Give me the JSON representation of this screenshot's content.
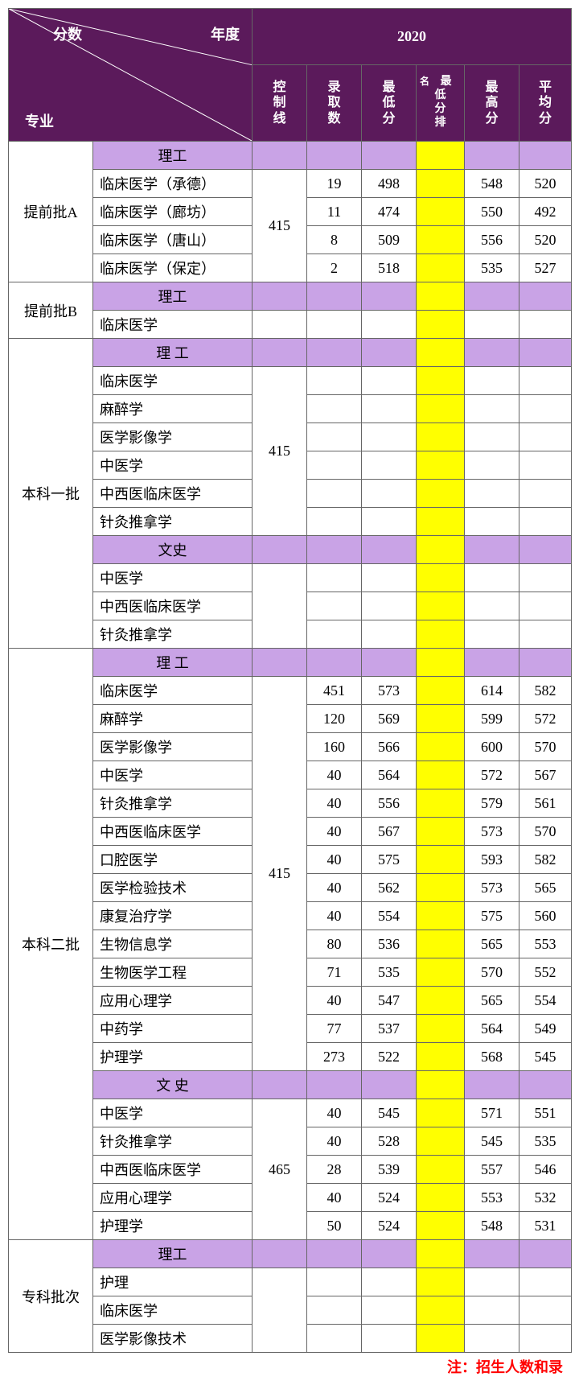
{
  "colors": {
    "header_bg": "#5b1a5b",
    "header_fg": "#ffffff",
    "subheader_bg": "#c9a3e6",
    "highlight_bg": "#ffff00",
    "border": "#666666",
    "footnote": "#ff0000"
  },
  "header": {
    "year": "2020",
    "diag_score": "分数",
    "diag_year": "年度",
    "diag_major": "专业",
    "cols": [
      "控制线",
      "录取数",
      "最低分",
      "最低分排名",
      "最高分",
      "平均分"
    ],
    "rank_prefix": "名"
  },
  "sections": [
    {
      "batch": "提前批A",
      "groups": [
        {
          "cat": "理工",
          "ctrl": "415",
          "ctrl_span": 4,
          "rows": [
            {
              "major": "临床医学（承德）",
              "num": "19",
              "min": "498",
              "rank": "",
              "max": "548",
              "avg": "520"
            },
            {
              "major": "临床医学（廊坊）",
              "num": "11",
              "min": "474",
              "rank": "",
              "max": "550",
              "avg": "492"
            },
            {
              "major": "临床医学（唐山）",
              "num": "8",
              "min": "509",
              "rank": "",
              "max": "556",
              "avg": "520"
            },
            {
              "major": "临床医学（保定）",
              "num": "2",
              "min": "518",
              "rank": "",
              "max": "535",
              "avg": "527"
            }
          ]
        }
      ]
    },
    {
      "batch": "提前批B",
      "groups": [
        {
          "cat": "理工",
          "rows": [
            {
              "major": "临床医学",
              "num": "",
              "min": "",
              "rank": "",
              "max": "",
              "avg": ""
            }
          ]
        }
      ]
    },
    {
      "batch": "本科一批",
      "groups": [
        {
          "cat": "理 工",
          "ctrl": "415",
          "ctrl_span": 6,
          "rows": [
            {
              "major": "临床医学",
              "num": "",
              "min": "",
              "rank": "",
              "max": "",
              "avg": ""
            },
            {
              "major": "麻醉学",
              "num": "",
              "min": "",
              "rank": "",
              "max": "",
              "avg": ""
            },
            {
              "major": "医学影像学",
              "num": "",
              "min": "",
              "rank": "",
              "max": "",
              "avg": ""
            },
            {
              "major": "中医学",
              "num": "",
              "min": "",
              "rank": "",
              "max": "",
              "avg": ""
            },
            {
              "major": "中西医临床医学",
              "num": "",
              "min": "",
              "rank": "",
              "max": "",
              "avg": ""
            },
            {
              "major": "针灸推拿学",
              "num": "",
              "min": "",
              "rank": "",
              "max": "",
              "avg": ""
            }
          ]
        },
        {
          "cat": "文史",
          "rows": [
            {
              "major": "中医学",
              "num": "",
              "min": "",
              "rank": "",
              "max": "",
              "avg": ""
            },
            {
              "major": "中西医临床医学",
              "num": "",
              "min": "",
              "rank": "",
              "max": "",
              "avg": ""
            },
            {
              "major": "针灸推拿学",
              "num": "",
              "min": "",
              "rank": "",
              "max": "",
              "avg": ""
            }
          ]
        }
      ]
    },
    {
      "batch": "本科二批",
      "groups": [
        {
          "cat": "理 工",
          "ctrl": "415",
          "ctrl_span": 14,
          "rows": [
            {
              "major": "临床医学",
              "num": "451",
              "min": "573",
              "rank": "",
              "max": "614",
              "avg": "582"
            },
            {
              "major": "麻醉学",
              "num": "120",
              "min": "569",
              "rank": "",
              "max": "599",
              "avg": "572"
            },
            {
              "major": "医学影像学",
              "num": "160",
              "min": "566",
              "rank": "",
              "max": "600",
              "avg": "570"
            },
            {
              "major": "中医学",
              "num": "40",
              "min": "564",
              "rank": "",
              "max": "572",
              "avg": "567"
            },
            {
              "major": "针灸推拿学",
              "num": "40",
              "min": "556",
              "rank": "",
              "max": "579",
              "avg": "561"
            },
            {
              "major": "中西医临床医学",
              "num": "40",
              "min": "567",
              "rank": "",
              "max": "573",
              "avg": "570"
            },
            {
              "major": "口腔医学",
              "num": "40",
              "min": "575",
              "rank": "",
              "max": "593",
              "avg": "582"
            },
            {
              "major": "医学检验技术",
              "num": "40",
              "min": "562",
              "rank": "",
              "max": "573",
              "avg": "565"
            },
            {
              "major": "康复治疗学",
              "num": "40",
              "min": "554",
              "rank": "",
              "max": "575",
              "avg": "560"
            },
            {
              "major": "生物信息学",
              "num": "80",
              "min": "536",
              "rank": "",
              "max": "565",
              "avg": "553"
            },
            {
              "major": "生物医学工程",
              "num": "71",
              "min": "535",
              "rank": "",
              "max": "570",
              "avg": "552"
            },
            {
              "major": "应用心理学",
              "num": "40",
              "min": "547",
              "rank": "",
              "max": "565",
              "avg": "554"
            },
            {
              "major": "中药学",
              "num": "77",
              "min": "537",
              "rank": "",
              "max": "564",
              "avg": "549"
            },
            {
              "major": "护理学",
              "num": "273",
              "min": "522",
              "rank": "",
              "max": "568",
              "avg": "545"
            }
          ]
        },
        {
          "cat": "文 史",
          "ctrl": "465",
          "ctrl_span": 5,
          "rows": [
            {
              "major": "中医学",
              "num": "40",
              "min": "545",
              "rank": "",
              "max": "571",
              "avg": "551"
            },
            {
              "major": "针灸推拿学",
              "num": "40",
              "min": "528",
              "rank": "",
              "max": "545",
              "avg": "535"
            },
            {
              "major": "中西医临床医学",
              "num": "28",
              "min": "539",
              "rank": "",
              "max": "557",
              "avg": "546"
            },
            {
              "major": "应用心理学",
              "num": "40",
              "min": "524",
              "rank": "",
              "max": "553",
              "avg": "532"
            },
            {
              "major": "护理学",
              "num": "50",
              "min": "524",
              "rank": "",
              "max": "548",
              "avg": "531"
            }
          ]
        }
      ]
    },
    {
      "batch": "专科批次",
      "groups": [
        {
          "cat": "理工",
          "rows": [
            {
              "major": "护理",
              "num": "",
              "min": "",
              "rank": "",
              "max": "",
              "avg": ""
            },
            {
              "major": "临床医学",
              "num": "",
              "min": "",
              "rank": "",
              "max": "",
              "avg": ""
            },
            {
              "major": "医学影像技术",
              "num": "",
              "min": "",
              "rank": "",
              "max": "",
              "avg": ""
            }
          ]
        }
      ]
    }
  ],
  "footnote": "注：招生人数和录"
}
